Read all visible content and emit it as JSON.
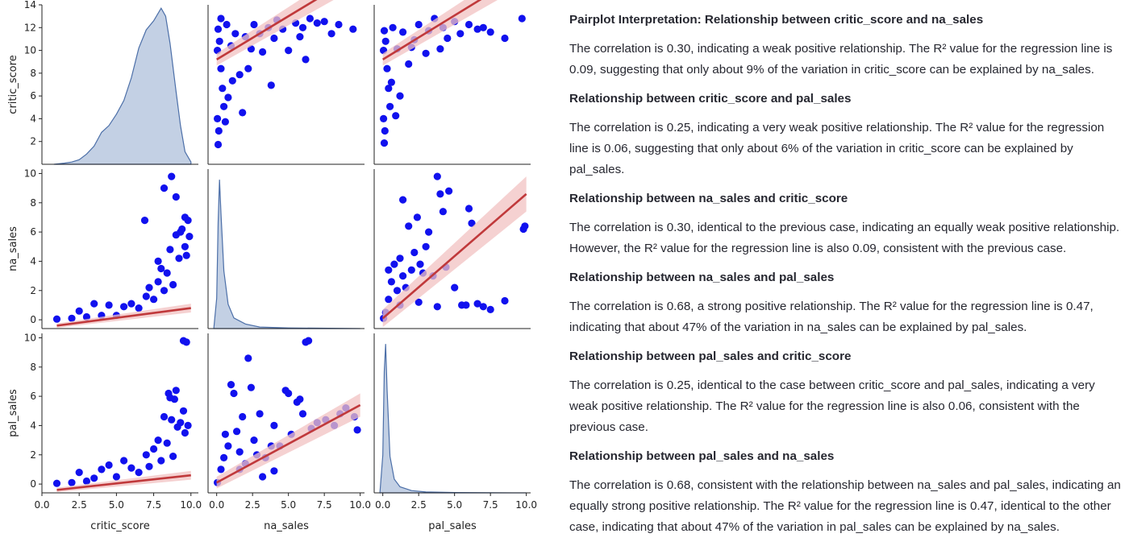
{
  "chart_data": {
    "type": "scatter",
    "title": "",
    "variables": [
      "critic_score",
      "na_sales",
      "pal_sales"
    ],
    "axis_labels": {
      "x": [
        "critic_score",
        "na_sales",
        "pal_sales"
      ],
      "y": [
        "critic_score",
        "na_sales",
        "pal_sales"
      ]
    },
    "ranges": {
      "critic_score": [
        0,
        10.5
      ],
      "na_sales": [
        -0.6,
        10.3
      ],
      "pal_sales": [
        -0.6,
        10.3
      ]
    },
    "diag_yranges": [
      [
        0,
        14
      ],
      [
        0,
        10.5
      ],
      [
        0,
        10.5
      ]
    ],
    "xticks": {
      "critic_score": [
        "0.0",
        "2.5",
        "5.0",
        "7.5",
        "10.0"
      ],
      "na_sales": [
        "0.0",
        "2.5",
        "5.0",
        "7.5",
        "10.0"
      ],
      "pal_sales": [
        "0.0",
        "2.5",
        "5.0",
        "7.5",
        "10.0"
      ]
    },
    "yticks": {
      "critic_score": [
        "2",
        "4",
        "6",
        "8",
        "10",
        "12",
        "14"
      ],
      "na_sales": [
        "0",
        "2",
        "4",
        "6",
        "8",
        "10"
      ],
      "pal_sales": [
        "0",
        "2",
        "4",
        "6",
        "8",
        "10"
      ]
    },
    "diagonal": [
      {
        "var": "critic_score",
        "kind": "kde",
        "x": [
          0.8,
          1.5,
          2,
          2.5,
          3,
          3.5,
          4,
          4.5,
          5,
          5.5,
          6,
          6.5,
          7,
          7.5,
          8,
          8.3,
          8.6,
          9,
          9.3,
          9.6,
          10
        ],
        "y": [
          0,
          0.1,
          0.2,
          0.4,
          0.9,
          1.6,
          2.8,
          3.4,
          4.4,
          5.6,
          7.6,
          10.2,
          11.8,
          12.6,
          13.7,
          13,
          10.6,
          6.4,
          3.4,
          1.1,
          0.2
        ]
      },
      {
        "var": "na_sales",
        "kind": "kde",
        "x": [
          -0.2,
          0,
          0.1,
          0.2,
          0.3,
          0.5,
          0.8,
          1.2,
          2,
          3,
          5,
          10
        ],
        "y": [
          0,
          2,
          7,
          9.8,
          7.6,
          3.8,
          1.6,
          0.7,
          0.3,
          0.1,
          0.04,
          0
        ]
      },
      {
        "var": "pal_sales",
        "kind": "kde",
        "x": [
          -0.2,
          0,
          0.1,
          0.2,
          0.3,
          0.5,
          0.8,
          1.2,
          2,
          3,
          5,
          10
        ],
        "y": [
          0,
          2.5,
          8,
          9.8,
          6.8,
          2.4,
          0.9,
          0.4,
          0.15,
          0.06,
          0.02,
          0
        ]
      }
    ],
    "off_diagonal": [
      {
        "x": "na_sales",
        "y": "critic_score",
        "regression": [
          [
            0.0,
            6.9
          ],
          [
            10.0,
            12.6
          ]
        ],
        "ci_width": 0.4,
        "points": [
          [
            0.05,
            7.5
          ],
          [
            0.1,
            8.9
          ],
          [
            0.2,
            8.1
          ],
          [
            0.3,
            6.3
          ],
          [
            0.4,
            5.0
          ],
          [
            0.5,
            3.8
          ],
          [
            0.15,
            2.2
          ],
          [
            0.1,
            1.3
          ],
          [
            0.05,
            3.0
          ],
          [
            0.7,
            9.2
          ],
          [
            1.0,
            7.8
          ],
          [
            1.3,
            8.6
          ],
          [
            1.6,
            5.9
          ],
          [
            2.0,
            8.4
          ],
          [
            2.2,
            6.3
          ],
          [
            2.6,
            9.2
          ],
          [
            3.0,
            8.6
          ],
          [
            3.2,
            7.4
          ],
          [
            3.6,
            9.0
          ],
          [
            4.0,
            8.3
          ],
          [
            4.2,
            9.5
          ],
          [
            4.6,
            8.9
          ],
          [
            5.0,
            7.5
          ],
          [
            5.5,
            9.3
          ],
          [
            6.0,
            9.0
          ],
          [
            6.2,
            6.9
          ],
          [
            6.5,
            9.6
          ],
          [
            7.0,
            9.3
          ],
          [
            7.5,
            9.4
          ],
          [
            8.0,
            8.6
          ],
          [
            8.5,
            9.2
          ],
          [
            9.5,
            8.9
          ],
          [
            0.3,
            9.6
          ],
          [
            0.8,
            4.4
          ],
          [
            1.1,
            5.5
          ],
          [
            2.4,
            7.6
          ],
          [
            1.8,
            3.4
          ],
          [
            0.6,
            2.8
          ],
          [
            5.8,
            8.4
          ],
          [
            3.8,
            5.2
          ]
        ]
      },
      {
        "x": "pal_sales",
        "y": "critic_score",
        "regression": [
          [
            0.0,
            6.9
          ],
          [
            10.0,
            12.7
          ]
        ],
        "ci_width": 0.4,
        "points": [
          [
            0.05,
            7.5
          ],
          [
            0.1,
            8.8
          ],
          [
            0.2,
            8.1
          ],
          [
            0.3,
            6.3
          ],
          [
            0.4,
            5.0
          ],
          [
            0.5,
            3.8
          ],
          [
            0.15,
            2.2
          ],
          [
            0.1,
            1.4
          ],
          [
            0.05,
            3.0
          ],
          [
            0.7,
            9.0
          ],
          [
            1.0,
            7.6
          ],
          [
            1.4,
            8.7
          ],
          [
            1.8,
            6.6
          ],
          [
            2.2,
            8.2
          ],
          [
            2.5,
            9.2
          ],
          [
            3.0,
            7.3
          ],
          [
            3.2,
            8.8
          ],
          [
            3.6,
            9.6
          ],
          [
            4.2,
            9.0
          ],
          [
            4.5,
            8.3
          ],
          [
            5.0,
            9.4
          ],
          [
            5.4,
            8.6
          ],
          [
            6.0,
            9.2
          ],
          [
            7.0,
            9.0
          ],
          [
            7.5,
            8.7
          ],
          [
            8.5,
            8.3
          ],
          [
            9.7,
            9.6
          ],
          [
            0.6,
            5.4
          ],
          [
            1.2,
            4.5
          ],
          [
            2.0,
            7.7
          ],
          [
            0.9,
            3.2
          ],
          [
            4.0,
            7.6
          ],
          [
            6.6,
            8.9
          ]
        ]
      },
      {
        "x": "critic_score",
        "y": "na_sales",
        "regression": [
          [
            1.0,
            -0.4
          ],
          [
            10.0,
            0.8
          ]
        ],
        "ci_width": 0.15,
        "points": [
          [
            1.0,
            0.05
          ],
          [
            2.0,
            0.1
          ],
          [
            3.0,
            0.2
          ],
          [
            4.0,
            0.3
          ],
          [
            5.0,
            0.3
          ],
          [
            5.5,
            0.9
          ],
          [
            6.0,
            1.1
          ],
          [
            6.5,
            0.8
          ],
          [
            7.0,
            1.6
          ],
          [
            7.2,
            2.2
          ],
          [
            7.5,
            1.4
          ],
          [
            7.8,
            2.6
          ],
          [
            8.0,
            3.5
          ],
          [
            8.2,
            2.0
          ],
          [
            8.4,
            3.2
          ],
          [
            8.6,
            4.8
          ],
          [
            8.8,
            2.4
          ],
          [
            9.0,
            5.8
          ],
          [
            9.2,
            4.2
          ],
          [
            9.4,
            6.2
          ],
          [
            9.6,
            7.0
          ],
          [
            9.8,
            6.8
          ],
          [
            9.0,
            8.4
          ],
          [
            8.7,
            9.8
          ],
          [
            8.2,
            9.0
          ],
          [
            9.6,
            5.0
          ],
          [
            7.8,
            4.0
          ],
          [
            6.9,
            6.8
          ],
          [
            9.7,
            4.4
          ],
          [
            3.5,
            1.1
          ],
          [
            4.5,
            1.0
          ],
          [
            2.5,
            0.6
          ],
          [
            9.9,
            5.7
          ],
          [
            9.3,
            6.0
          ]
        ]
      },
      {
        "x": "pal_sales",
        "y": "na_sales",
        "regression": [
          [
            0.0,
            0.1
          ],
          [
            10.0,
            8.6
          ]
        ],
        "ci_width": 0.6,
        "points": [
          [
            0.05,
            0.1
          ],
          [
            0.2,
            0.5
          ],
          [
            0.4,
            1.4
          ],
          [
            0.6,
            2.6
          ],
          [
            0.8,
            3.8
          ],
          [
            1.0,
            2.0
          ],
          [
            1.2,
            4.2
          ],
          [
            1.4,
            3.0
          ],
          [
            1.6,
            2.2
          ],
          [
            1.8,
            6.4
          ],
          [
            2.0,
            3.4
          ],
          [
            2.2,
            4.6
          ],
          [
            2.4,
            7.0
          ],
          [
            2.6,
            3.8
          ],
          [
            2.8,
            3.2
          ],
          [
            3.0,
            5.0
          ],
          [
            3.2,
            6.0
          ],
          [
            3.5,
            3.0
          ],
          [
            3.8,
            9.8
          ],
          [
            4.0,
            8.6
          ],
          [
            4.2,
            7.4
          ],
          [
            4.6,
            8.8
          ],
          [
            5.0,
            2.2
          ],
          [
            5.5,
            1.0
          ],
          [
            5.8,
            1.0
          ],
          [
            6.2,
            6.6
          ],
          [
            6.6,
            1.1
          ],
          [
            7.0,
            0.9
          ],
          [
            7.5,
            0.7
          ],
          [
            8.5,
            1.3
          ],
          [
            9.8,
            6.2
          ],
          [
            9.9,
            6.4
          ],
          [
            2.5,
            1.2
          ],
          [
            3.8,
            0.9
          ],
          [
            1.2,
            1.0
          ],
          [
            0.4,
            3.4
          ],
          [
            6.0,
            7.6
          ],
          [
            4.4,
            3.6
          ],
          [
            1.4,
            8.2
          ]
        ]
      },
      {
        "x": "critic_score",
        "y": "pal_sales",
        "regression": [
          [
            1.0,
            -0.4
          ],
          [
            10.0,
            0.6
          ]
        ],
        "ci_width": 0.15,
        "points": [
          [
            1.0,
            0.05
          ],
          [
            2.0,
            0.1
          ],
          [
            3.0,
            0.2
          ],
          [
            3.5,
            0.4
          ],
          [
            4.5,
            1.3
          ],
          [
            5.0,
            0.5
          ],
          [
            5.5,
            1.6
          ],
          [
            6.0,
            1.1
          ],
          [
            6.5,
            0.8
          ],
          [
            7.0,
            2.0
          ],
          [
            7.2,
            1.2
          ],
          [
            7.5,
            2.4
          ],
          [
            7.8,
            3.0
          ],
          [
            8.0,
            1.6
          ],
          [
            8.2,
            4.6
          ],
          [
            8.4,
            2.8
          ],
          [
            8.5,
            6.2
          ],
          [
            8.6,
            5.9
          ],
          [
            8.7,
            4.4
          ],
          [
            8.9,
            5.8
          ],
          [
            9.0,
            6.4
          ],
          [
            9.1,
            3.9
          ],
          [
            9.3,
            4.2
          ],
          [
            9.5,
            5.0
          ],
          [
            9.7,
            9.7
          ],
          [
            9.5,
            9.8
          ],
          [
            9.8,
            4.0
          ],
          [
            8.8,
            1.9
          ],
          [
            9.6,
            3.5
          ],
          [
            2.5,
            0.8
          ],
          [
            4.0,
            1.0
          ]
        ]
      },
      {
        "x": "na_sales",
        "y": "pal_sales",
        "regression": [
          [
            0.0,
            0.1
          ],
          [
            10.0,
            5.4
          ]
        ],
        "ci_width": 0.4,
        "points": [
          [
            0.05,
            0.1
          ],
          [
            0.3,
            1.0
          ],
          [
            0.5,
            1.8
          ],
          [
            0.8,
            2.6
          ],
          [
            1.0,
            6.8
          ],
          [
            1.2,
            6.2
          ],
          [
            1.4,
            3.6
          ],
          [
            1.6,
            2.2
          ],
          [
            1.8,
            4.6
          ],
          [
            2.0,
            1.4
          ],
          [
            2.2,
            8.6
          ],
          [
            2.6,
            3.0
          ],
          [
            2.8,
            2.0
          ],
          [
            3.0,
            4.8
          ],
          [
            3.4,
            1.8
          ],
          [
            3.8,
            2.6
          ],
          [
            4.0,
            4.0
          ],
          [
            4.4,
            2.6
          ],
          [
            4.8,
            6.4
          ],
          [
            5.2,
            3.4
          ],
          [
            5.6,
            5.6
          ],
          [
            6.0,
            4.8
          ],
          [
            6.2,
            9.7
          ],
          [
            6.4,
            9.8
          ],
          [
            6.6,
            3.8
          ],
          [
            7.0,
            4.2
          ],
          [
            7.6,
            4.4
          ],
          [
            8.2,
            4.0
          ],
          [
            8.6,
            4.8
          ],
          [
            9.0,
            5.2
          ],
          [
            9.6,
            4.6
          ],
          [
            9.8,
            3.7
          ],
          [
            5.0,
            6.2
          ],
          [
            1.6,
            1.0
          ],
          [
            2.4,
            6.6
          ],
          [
            0.6,
            3.4
          ],
          [
            3.2,
            0.5
          ],
          [
            4.0,
            0.9
          ],
          [
            5.8,
            5.8
          ]
        ]
      }
    ],
    "colors": {
      "scatter": "#1111ee",
      "regression": "#c0393b",
      "ci": "#f2c2c2",
      "kde": "#4c6fa8",
      "kde_fill": "#c3d0e4"
    }
  },
  "interpretation": {
    "sections": [
      {
        "title": "Pairplot Interpretation: Relationship between critic_score and na_sales",
        "text": "The correlation is 0.30, indicating a weak positive relationship. The R² value for the regression line is 0.09, suggesting that only about 9% of the variation in critic_score can be explained by na_sales."
      },
      {
        "title": "Relationship between critic_score and pal_sales",
        "text": "The correlation is 0.25, indicating a very weak positive relationship. The R² value for the regression line is 0.06, suggesting that only about 6% of the variation in critic_score can be explained by pal_sales."
      },
      {
        "title": "Relationship between na_sales and critic_score",
        "text": "The correlation is 0.30, identical to the previous case, indicating an equally weak positive relationship. However, the R² value for the regression line is also 0.09, consistent with the previous case."
      },
      {
        "title": "Relationship between na_sales and pal_sales",
        "text": "The correlation is 0.68, a strong positive relationship. The R² value for the regression line is 0.47, indicating that about 47% of the variation in na_sales can be explained by pal_sales."
      },
      {
        "title": "Relationship between pal_sales and critic_score",
        "text": "The correlation is 0.25, identical to the case between critic_score and pal_sales, indicating a very weak positive relationship. The R² value for the regression line is also 0.06, consistent with the previous case."
      },
      {
        "title": "Relationship between pal_sales and na_sales",
        "text": "The correlation is 0.68, consistent with the relationship between na_sales and pal_sales, indicating an equally strong positive relationship. The R² value for the regression line is 0.47, identical to the other case, indicating that about 47% of the variation in pal_sales can be explained by na_sales."
      }
    ]
  }
}
